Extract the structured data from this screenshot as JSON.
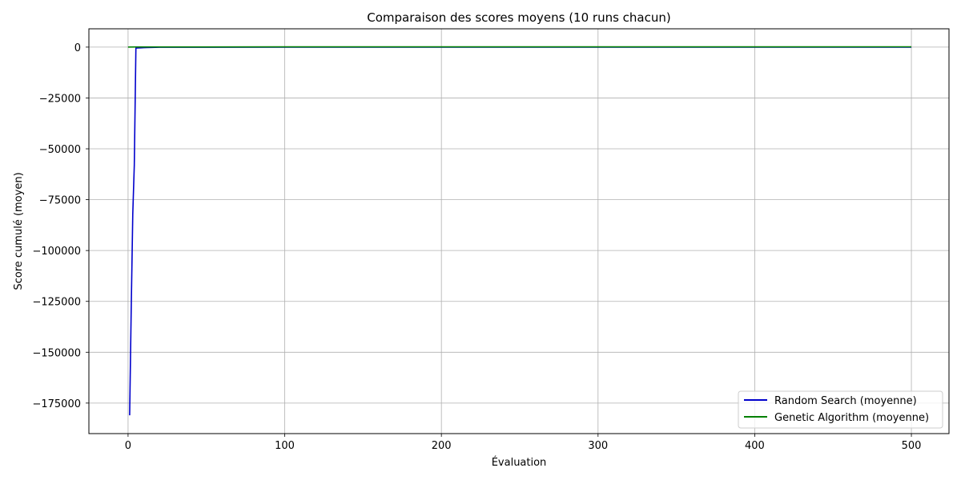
{
  "chart_data": {
    "type": "line",
    "title": "Comparaison des scores moyens (10 runs chacun)",
    "xlabel": "Évaluation",
    "ylabel": "Score cumulé (moyen)",
    "xlim": [
      -25,
      524
    ],
    "ylim": [
      -190000,
      9000
    ],
    "xticks": [
      0,
      100,
      200,
      300,
      400,
      500
    ],
    "yticks": [
      0,
      -25000,
      -50000,
      -75000,
      -100000,
      -125000,
      -150000,
      -175000
    ],
    "grid": true,
    "legend_position": "lower-right",
    "series": [
      {
        "name": "Random Search (moyenne)",
        "color": "#0000cc",
        "x": [
          1,
          2,
          3,
          4,
          5,
          6,
          8,
          10,
          12,
          15,
          20,
          50,
          100,
          200,
          300,
          400,
          500
        ],
        "y": [
          -181000,
          -130000,
          -82000,
          -58000,
          -500,
          -400,
          -350,
          -300,
          -200,
          -150,
          -100,
          -80,
          -60,
          -50,
          -40,
          -30,
          -20
        ]
      },
      {
        "name": "Genetic Algorithm (moyenne)",
        "color": "#008000",
        "x": [
          0,
          5,
          10,
          20,
          50,
          100,
          200,
          300,
          400,
          500
        ],
        "y": [
          50,
          60,
          70,
          80,
          90,
          100,
          110,
          120,
          130,
          140
        ]
      }
    ]
  }
}
